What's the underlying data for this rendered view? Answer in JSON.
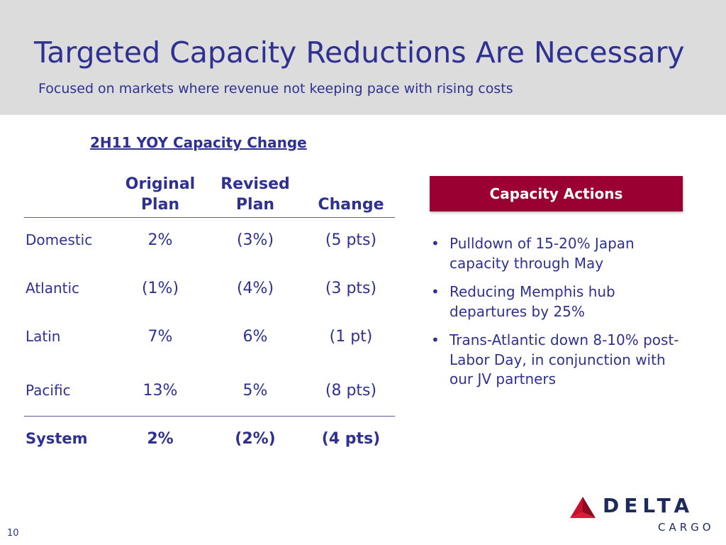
{
  "slide": {
    "title": "Targeted Capacity Reductions Are Necessary",
    "subtitle": "Focused on markets where revenue not keeping pace with rising costs",
    "page_number": "10"
  },
  "table": {
    "heading": "2H11 YOY Capacity Change",
    "columns": [
      {
        "line1": "Original",
        "line2": "Plan"
      },
      {
        "line1": "Revised",
        "line2": "Plan"
      },
      {
        "line1": "",
        "line2": "Change"
      }
    ],
    "rows": [
      {
        "label": "Domestic",
        "original": "2%",
        "revised": "(3%)",
        "change": "(5 pts)"
      },
      {
        "label": "Atlantic",
        "original": "(1%)",
        "revised": "(4%)",
        "change": "(3 pts)"
      },
      {
        "label": "Latin",
        "original": "7%",
        "revised": "6%",
        "change": "(1 pt)"
      },
      {
        "label": "Pacific",
        "original": "13%",
        "revised": "5%",
        "change": "(8 pts)"
      }
    ],
    "total": {
      "label": "System",
      "original": "2%",
      "revised": "(2%)",
      "change": "(4 pts)"
    }
  },
  "actions": {
    "title": "Capacity Actions",
    "bullets": [
      "Pulldown of 15-20% Japan capacity through May",
      "Reducing Memphis hub departures by 25%",
      "Trans-Atlantic down 8-10% post-Labor Day, in conjunction with our JV partners"
    ]
  },
  "logo": {
    "icon": "delta-widget-icon",
    "word": "DELTA",
    "sub": "CARGO",
    "colors": {
      "red": "#c8102e",
      "dark_red": "#8a0a1f",
      "navy": "#1d2b5c"
    }
  },
  "colors": {
    "header_bg": "#dcdcdc",
    "text": "#2e3192",
    "accent": "#9b0032"
  }
}
